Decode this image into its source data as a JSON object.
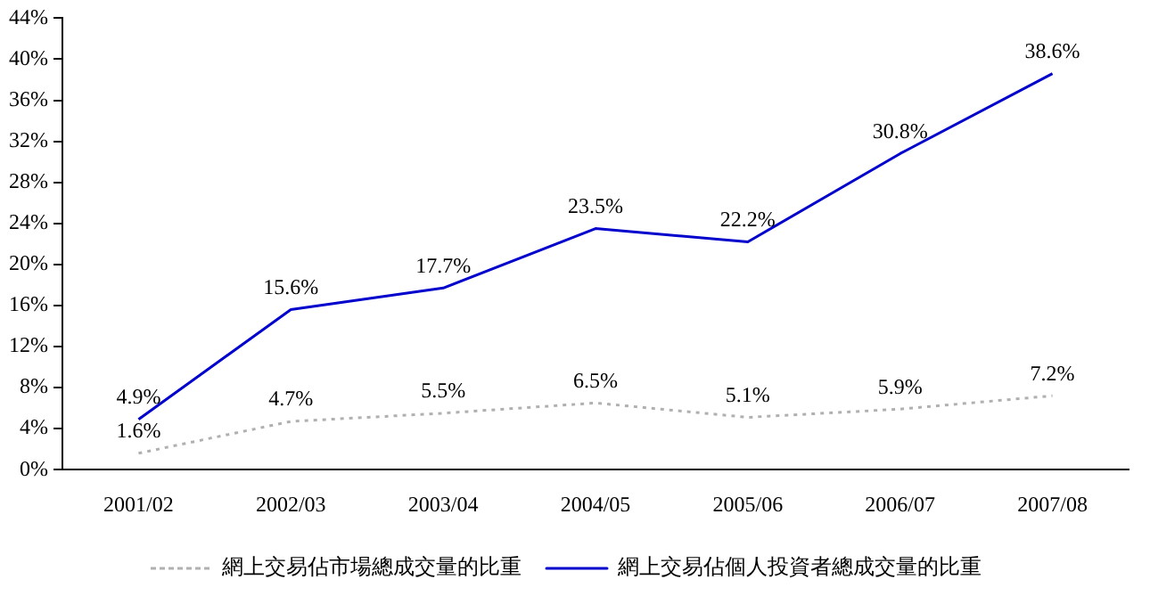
{
  "chart_data": {
    "type": "line",
    "categories": [
      "2001/02",
      "2002/03",
      "2003/04",
      "2004/05",
      "2005/06",
      "2006/07",
      "2007/08"
    ],
    "series": [
      {
        "name": "網上交易佔市場總成交量的比重",
        "color": "#b0b0b0",
        "line_style": "dotted",
        "values": [
          1.6,
          4.7,
          5.5,
          6.5,
          5.1,
          5.9,
          7.2
        ],
        "value_labels": [
          "1.6%",
          "4.7%",
          "5.5%",
          "6.5%",
          "5.1%",
          "5.9%",
          "7.2%"
        ]
      },
      {
        "name": "網上交易佔個人投資者總成交量的比重",
        "color": "#0000cc",
        "line_style": "solid",
        "values": [
          4.9,
          15.6,
          17.7,
          23.5,
          22.2,
          30.8,
          38.6
        ],
        "value_labels": [
          "4.9%",
          "15.6%",
          "17.7%",
          "23.5%",
          "22.2%",
          "30.8%",
          "38.6%"
        ]
      }
    ],
    "ylim": [
      0,
      44
    ],
    "yticks": [
      {
        "value": 0,
        "label": "0%"
      },
      {
        "value": 4,
        "label": "4%"
      },
      {
        "value": 8,
        "label": "8%"
      },
      {
        "value": 12,
        "label": "12%"
      },
      {
        "value": 16,
        "label": "16%"
      },
      {
        "value": 20,
        "label": "20%"
      },
      {
        "value": 24,
        "label": "24%"
      },
      {
        "value": 28,
        "label": "28%"
      },
      {
        "value": 32,
        "label": "32%"
      },
      {
        "value": 36,
        "label": "36%"
      },
      {
        "value": 40,
        "label": "40%"
      },
      {
        "value": 44,
        "label": "44%"
      }
    ],
    "grid": false,
    "legend": "bottom",
    "marker": "none"
  }
}
